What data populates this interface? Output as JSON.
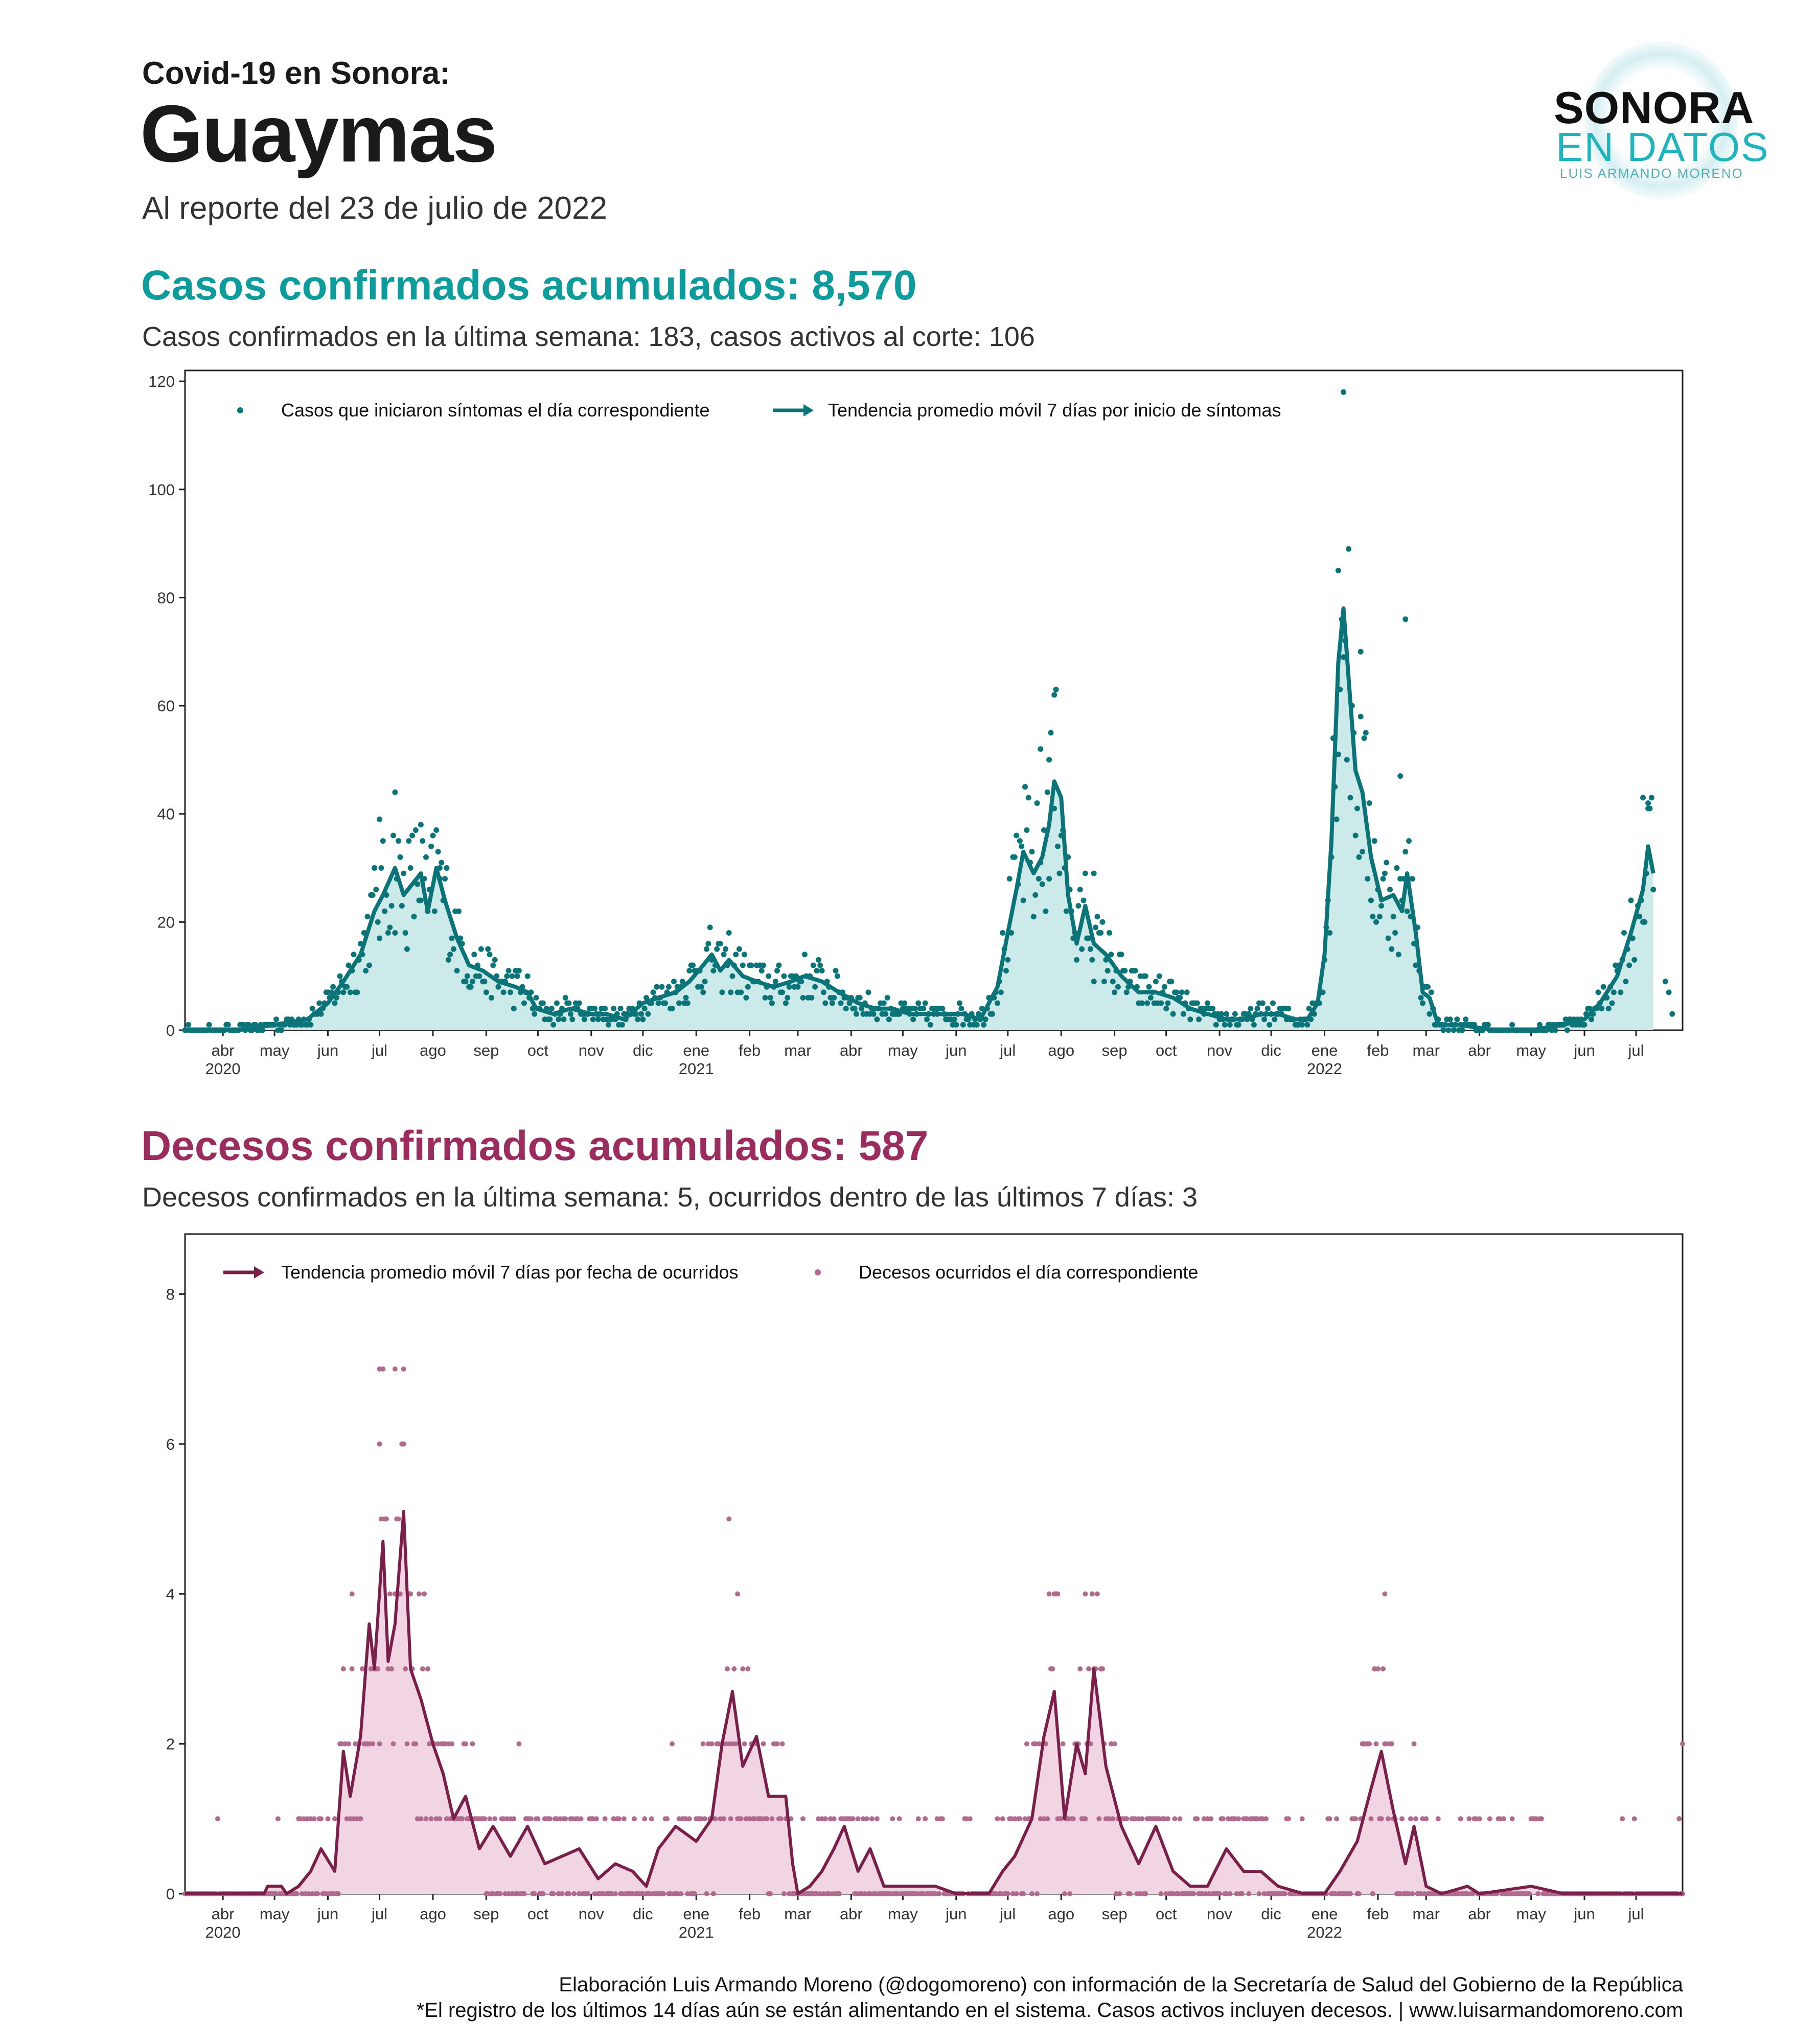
{
  "header": {
    "kicker": "Covid-19  en Sonora:",
    "title": "Guaymas",
    "subtitle": "Al reporte del 23 de julio de 2022"
  },
  "logo": {
    "line1": "SONORA",
    "line2": "EN DATOS",
    "line3": "LUIS ARMANDO MORENO"
  },
  "cases": {
    "heading": "Casos confirmados acumulados: 8,570",
    "subheading": "Casos confirmados en la última semana: 183, casos activos al corte: 106"
  },
  "deaths": {
    "heading": "Decesos confirmados acumulados: 587",
    "subheading": "Decesos confirmados en la última semana: 5, ocurridos dentro de las últimos 7 días: 3"
  },
  "footer": {
    "line1": "Elaboración Luis Armando Moreno (@dogomoreno) con información de la Secretaría de Salud del Gobierno de la República",
    "line2": "*El registro de los últimos 14 días aún se están alimentando en el sistema. Casos activos incluyen decesos. | www.luisarmandomoreno.com"
  },
  "colors": {
    "cases_line": "#0b7479",
    "cases_fill": "#cdeaea",
    "cases_point": "#0b7479",
    "deaths_line": "#7a1e4a",
    "deaths_fill": "#f2d5e2",
    "deaths_point": "#b06a8d"
  },
  "chart_data": [
    {
      "type": "line",
      "name": "cases",
      "x_range": [
        "2020-03-10",
        "2022-07-28"
      ],
      "ylim": [
        0,
        122
      ],
      "yticks": [
        0,
        20,
        40,
        60,
        80,
        100,
        120
      ],
      "grid": false,
      "legend_position": "top-left",
      "legend": [
        "Casos que iniciaron síntomas el día correspondiente",
        "Tendencia promedio móvil 7 días por inicio de síntomas"
      ],
      "x_ticks": [
        {
          "date": "2020-04-01",
          "label": "abr",
          "year": "2020"
        },
        {
          "date": "2020-05-01",
          "label": "may"
        },
        {
          "date": "2020-06-01",
          "label": "jun"
        },
        {
          "date": "2020-07-01",
          "label": "jul"
        },
        {
          "date": "2020-08-01",
          "label": "ago"
        },
        {
          "date": "2020-09-01",
          "label": "sep"
        },
        {
          "date": "2020-10-01",
          "label": "oct"
        },
        {
          "date": "2020-11-01",
          "label": "nov"
        },
        {
          "date": "2020-12-01",
          "label": "dic"
        },
        {
          "date": "2021-01-01",
          "label": "ene",
          "year": "2021"
        },
        {
          "date": "2021-02-01",
          "label": "feb"
        },
        {
          "date": "2021-03-01",
          "label": "mar"
        },
        {
          "date": "2021-04-01",
          "label": "abr"
        },
        {
          "date": "2021-05-01",
          "label": "may"
        },
        {
          "date": "2021-06-01",
          "label": "jun"
        },
        {
          "date": "2021-07-01",
          "label": "jul"
        },
        {
          "date": "2021-08-01",
          "label": "ago"
        },
        {
          "date": "2021-09-01",
          "label": "sep"
        },
        {
          "date": "2021-10-01",
          "label": "oct"
        },
        {
          "date": "2021-11-01",
          "label": "nov"
        },
        {
          "date": "2021-12-01",
          "label": "dic"
        },
        {
          "date": "2022-01-01",
          "label": "ene",
          "year": "2022"
        },
        {
          "date": "2022-02-01",
          "label": "feb"
        },
        {
          "date": "2022-03-01",
          "label": "mar"
        },
        {
          "date": "2022-04-01",
          "label": "abr"
        },
        {
          "date": "2022-05-01",
          "label": "may"
        },
        {
          "date": "2022-06-01",
          "label": "jun"
        },
        {
          "date": "2022-07-01",
          "label": "jul"
        }
      ],
      "trend": [
        [
          "2020-03-10",
          0
        ],
        [
          "2020-04-10",
          0
        ],
        [
          "2020-05-01",
          1
        ],
        [
          "2020-05-20",
          2
        ],
        [
          "2020-06-01",
          5
        ],
        [
          "2020-06-10",
          9
        ],
        [
          "2020-06-20",
          14
        ],
        [
          "2020-06-28",
          22
        ],
        [
          "2020-07-03",
          25
        ],
        [
          "2020-07-10",
          30
        ],
        [
          "2020-07-15",
          25
        ],
        [
          "2020-07-20",
          27
        ],
        [
          "2020-07-25",
          29
        ],
        [
          "2020-07-29",
          22
        ],
        [
          "2020-08-03",
          30
        ],
        [
          "2020-08-08",
          24
        ],
        [
          "2020-08-15",
          17
        ],
        [
          "2020-08-22",
          12
        ],
        [
          "2020-08-30",
          11
        ],
        [
          "2020-09-08",
          9
        ],
        [
          "2020-09-18",
          8
        ],
        [
          "2020-09-25",
          7
        ],
        [
          "2020-09-30",
          4
        ],
        [
          "2020-10-10",
          3
        ],
        [
          "2020-10-20",
          4
        ],
        [
          "2020-11-01",
          3
        ],
        [
          "2020-11-10",
          3
        ],
        [
          "2020-11-20",
          2
        ],
        [
          "2020-12-01",
          5
        ],
        [
          "2020-12-10",
          6
        ],
        [
          "2020-12-20",
          7
        ],
        [
          "2020-12-28",
          9
        ],
        [
          "2021-01-05",
          12
        ],
        [
          "2021-01-10",
          14
        ],
        [
          "2021-01-15",
          11
        ],
        [
          "2021-01-20",
          13
        ],
        [
          "2021-01-28",
          10
        ],
        [
          "2021-02-05",
          9
        ],
        [
          "2021-02-15",
          8
        ],
        [
          "2021-02-25",
          9
        ],
        [
          "2021-03-05",
          10
        ],
        [
          "2021-03-15",
          9
        ],
        [
          "2021-03-25",
          7
        ],
        [
          "2021-04-05",
          5
        ],
        [
          "2021-04-15",
          4
        ],
        [
          "2021-04-25",
          4
        ],
        [
          "2021-05-05",
          3
        ],
        [
          "2021-05-15",
          3
        ],
        [
          "2021-05-25",
          3
        ],
        [
          "2021-06-05",
          3
        ],
        [
          "2021-06-15",
          2
        ],
        [
          "2021-06-25",
          8
        ],
        [
          "2021-07-01",
          18
        ],
        [
          "2021-07-06",
          26
        ],
        [
          "2021-07-10",
          33
        ],
        [
          "2021-07-16",
          29
        ],
        [
          "2021-07-21",
          32
        ],
        [
          "2021-07-25",
          38
        ],
        [
          "2021-07-28",
          46
        ],
        [
          "2021-08-01",
          43
        ],
        [
          "2021-08-05",
          25
        ],
        [
          "2021-08-10",
          16
        ],
        [
          "2021-08-15",
          23
        ],
        [
          "2021-08-20",
          16
        ],
        [
          "2021-08-27",
          14
        ],
        [
          "2021-09-05",
          10
        ],
        [
          "2021-09-15",
          7
        ],
        [
          "2021-09-25",
          7
        ],
        [
          "2021-10-05",
          6
        ],
        [
          "2021-10-15",
          4
        ],
        [
          "2021-10-25",
          3
        ],
        [
          "2021-11-05",
          2
        ],
        [
          "2021-11-15",
          2
        ],
        [
          "2021-11-25",
          3
        ],
        [
          "2021-12-05",
          3
        ],
        [
          "2021-12-15",
          2
        ],
        [
          "2021-12-22",
          2
        ],
        [
          "2021-12-28",
          5
        ],
        [
          "2022-01-01",
          14
        ],
        [
          "2022-01-05",
          35
        ],
        [
          "2022-01-09",
          68
        ],
        [
          "2022-01-12",
          78
        ],
        [
          "2022-01-15",
          65
        ],
        [
          "2022-01-19",
          48
        ],
        [
          "2022-01-23",
          44
        ],
        [
          "2022-01-28",
          32
        ],
        [
          "2022-02-03",
          24
        ],
        [
          "2022-02-10",
          25
        ],
        [
          "2022-02-15",
          22
        ],
        [
          "2022-02-18",
          29
        ],
        [
          "2022-02-23",
          18
        ],
        [
          "2022-02-27",
          7
        ],
        [
          "2022-03-03",
          6
        ],
        [
          "2022-03-08",
          1
        ],
        [
          "2022-03-20",
          1
        ],
        [
          "2022-04-10",
          0
        ],
        [
          "2022-05-01",
          0
        ],
        [
          "2022-05-20",
          1
        ],
        [
          "2022-06-01",
          2
        ],
        [
          "2022-06-10",
          5
        ],
        [
          "2022-06-20",
          10
        ],
        [
          "2022-06-28",
          18
        ],
        [
          "2022-07-05",
          26
        ],
        [
          "2022-07-08",
          34
        ],
        [
          "2022-07-11",
          29
        ]
      ],
      "points_outliers": [
        [
          "2020-07-10",
          44
        ],
        [
          "2020-07-01",
          39
        ],
        [
          "2020-07-25",
          38
        ],
        [
          "2020-08-05",
          30
        ],
        [
          "2021-07-28",
          62
        ],
        [
          "2021-07-20",
          52
        ],
        [
          "2021-07-25",
          50
        ],
        [
          "2021-08-20",
          29
        ],
        [
          "2022-01-12",
          118
        ],
        [
          "2022-01-09",
          85
        ],
        [
          "2022-02-17",
          76
        ],
        [
          "2022-02-14",
          47
        ],
        [
          "2022-01-22",
          70
        ],
        [
          "2022-07-05",
          43
        ],
        [
          "2022-07-08",
          41
        ],
        [
          "2022-07-18",
          9
        ],
        [
          "2022-07-20",
          7
        ],
        [
          "2022-07-22",
          3
        ]
      ]
    },
    {
      "type": "line",
      "name": "deaths",
      "x_range": [
        "2020-03-10",
        "2022-07-28"
      ],
      "ylim": [
        0,
        8.8
      ],
      "yticks": [
        0,
        2,
        4,
        6,
        8
      ],
      "grid": false,
      "legend_position": "top-left",
      "legend": [
        "Tendencia promedio móvil 7 días por fecha de ocurridos",
        "Decesos ocurridos el día correspondiente"
      ],
      "trend": [
        [
          "2020-03-10",
          0
        ],
        [
          "2020-04-25",
          0
        ],
        [
          "2020-04-27",
          0.1
        ],
        [
          "2020-05-05",
          0.1
        ],
        [
          "2020-05-08",
          0
        ],
        [
          "2020-05-15",
          0.1
        ],
        [
          "2020-05-22",
          0.3
        ],
        [
          "2020-05-28",
          0.6
        ],
        [
          "2020-06-05",
          0.3
        ],
        [
          "2020-06-10",
          1.9
        ],
        [
          "2020-06-14",
          1.3
        ],
        [
          "2020-06-20",
          2.1
        ],
        [
          "2020-06-25",
          3.6
        ],
        [
          "2020-06-28",
          3.0
        ],
        [
          "2020-07-03",
          4.7
        ],
        [
          "2020-07-06",
          3.1
        ],
        [
          "2020-07-10",
          3.6
        ],
        [
          "2020-07-15",
          5.1
        ],
        [
          "2020-07-19",
          3.0
        ],
        [
          "2020-07-25",
          2.6
        ],
        [
          "2020-08-01",
          2.0
        ],
        [
          "2020-08-07",
          1.6
        ],
        [
          "2020-08-13",
          1.0
        ],
        [
          "2020-08-20",
          1.3
        ],
        [
          "2020-08-28",
          0.6
        ],
        [
          "2020-09-05",
          0.9
        ],
        [
          "2020-09-15",
          0.5
        ],
        [
          "2020-09-25",
          0.9
        ],
        [
          "2020-10-05",
          0.4
        ],
        [
          "2020-10-15",
          0.5
        ],
        [
          "2020-10-25",
          0.6
        ],
        [
          "2020-11-05",
          0.2
        ],
        [
          "2020-11-15",
          0.4
        ],
        [
          "2020-11-25",
          0.3
        ],
        [
          "2020-12-03",
          0.1
        ],
        [
          "2020-12-10",
          0.6
        ],
        [
          "2020-12-20",
          0.9
        ],
        [
          "2021-01-01",
          0.7
        ],
        [
          "2021-01-10",
          1.0
        ],
        [
          "2021-01-16",
          2.0
        ],
        [
          "2021-01-22",
          2.7
        ],
        [
          "2021-01-28",
          1.7
        ],
        [
          "2021-02-05",
          2.1
        ],
        [
          "2021-02-12",
          1.3
        ],
        [
          "2021-02-22",
          1.3
        ],
        [
          "2021-02-26",
          0.4
        ],
        [
          "2021-03-01",
          0
        ],
        [
          "2021-03-08",
          0.1
        ],
        [
          "2021-03-15",
          0.3
        ],
        [
          "2021-03-22",
          0.6
        ],
        [
          "2021-03-28",
          0.9
        ],
        [
          "2021-04-05",
          0.3
        ],
        [
          "2021-04-12",
          0.6
        ],
        [
          "2021-04-20",
          0.1
        ],
        [
          "2021-05-01",
          0.1
        ],
        [
          "2021-05-20",
          0.1
        ],
        [
          "2021-06-01",
          0
        ],
        [
          "2021-06-20",
          0
        ],
        [
          "2021-06-28",
          0.3
        ],
        [
          "2021-07-05",
          0.5
        ],
        [
          "2021-07-15",
          1.0
        ],
        [
          "2021-07-22",
          2.1
        ],
        [
          "2021-07-28",
          2.7
        ],
        [
          "2021-08-03",
          1.0
        ],
        [
          "2021-08-10",
          2.0
        ],
        [
          "2021-08-15",
          1.6
        ],
        [
          "2021-08-20",
          3.0
        ],
        [
          "2021-08-27",
          1.7
        ],
        [
          "2021-09-05",
          0.9
        ],
        [
          "2021-09-15",
          0.4
        ],
        [
          "2021-09-25",
          0.9
        ],
        [
          "2021-10-05",
          0.3
        ],
        [
          "2021-10-15",
          0.1
        ],
        [
          "2021-10-25",
          0.1
        ],
        [
          "2021-11-05",
          0.6
        ],
        [
          "2021-11-15",
          0.3
        ],
        [
          "2021-11-25",
          0.3
        ],
        [
          "2021-12-05",
          0.1
        ],
        [
          "2021-12-20",
          0
        ],
        [
          "2022-01-01",
          0
        ],
        [
          "2022-01-10",
          0.3
        ],
        [
          "2022-01-20",
          0.7
        ],
        [
          "2022-01-28",
          1.4
        ],
        [
          "2022-02-03",
          1.9
        ],
        [
          "2022-02-10",
          1.1
        ],
        [
          "2022-02-17",
          0.4
        ],
        [
          "2022-02-22",
          0.9
        ],
        [
          "2022-03-01",
          0.1
        ],
        [
          "2022-03-10",
          0
        ],
        [
          "2022-03-25",
          0.1
        ],
        [
          "2022-04-01",
          0
        ],
        [
          "2022-05-01",
          0.1
        ],
        [
          "2022-05-20",
          0
        ],
        [
          "2022-07-28",
          0
        ]
      ],
      "points_outliers": [
        [
          "2020-07-01",
          7
        ],
        [
          "2020-07-10",
          7
        ],
        [
          "2020-07-01",
          6
        ],
        [
          "2020-07-15",
          6
        ],
        [
          "2021-01-20",
          5
        ],
        [
          "2020-06-15",
          4
        ],
        [
          "2021-01-25",
          4
        ],
        [
          "2021-07-30",
          4
        ],
        [
          "2021-08-15",
          4
        ],
        [
          "2022-02-05",
          4
        ],
        [
          "2022-07-28",
          2
        ],
        [
          "2022-07-26",
          1
        ]
      ]
    }
  ]
}
